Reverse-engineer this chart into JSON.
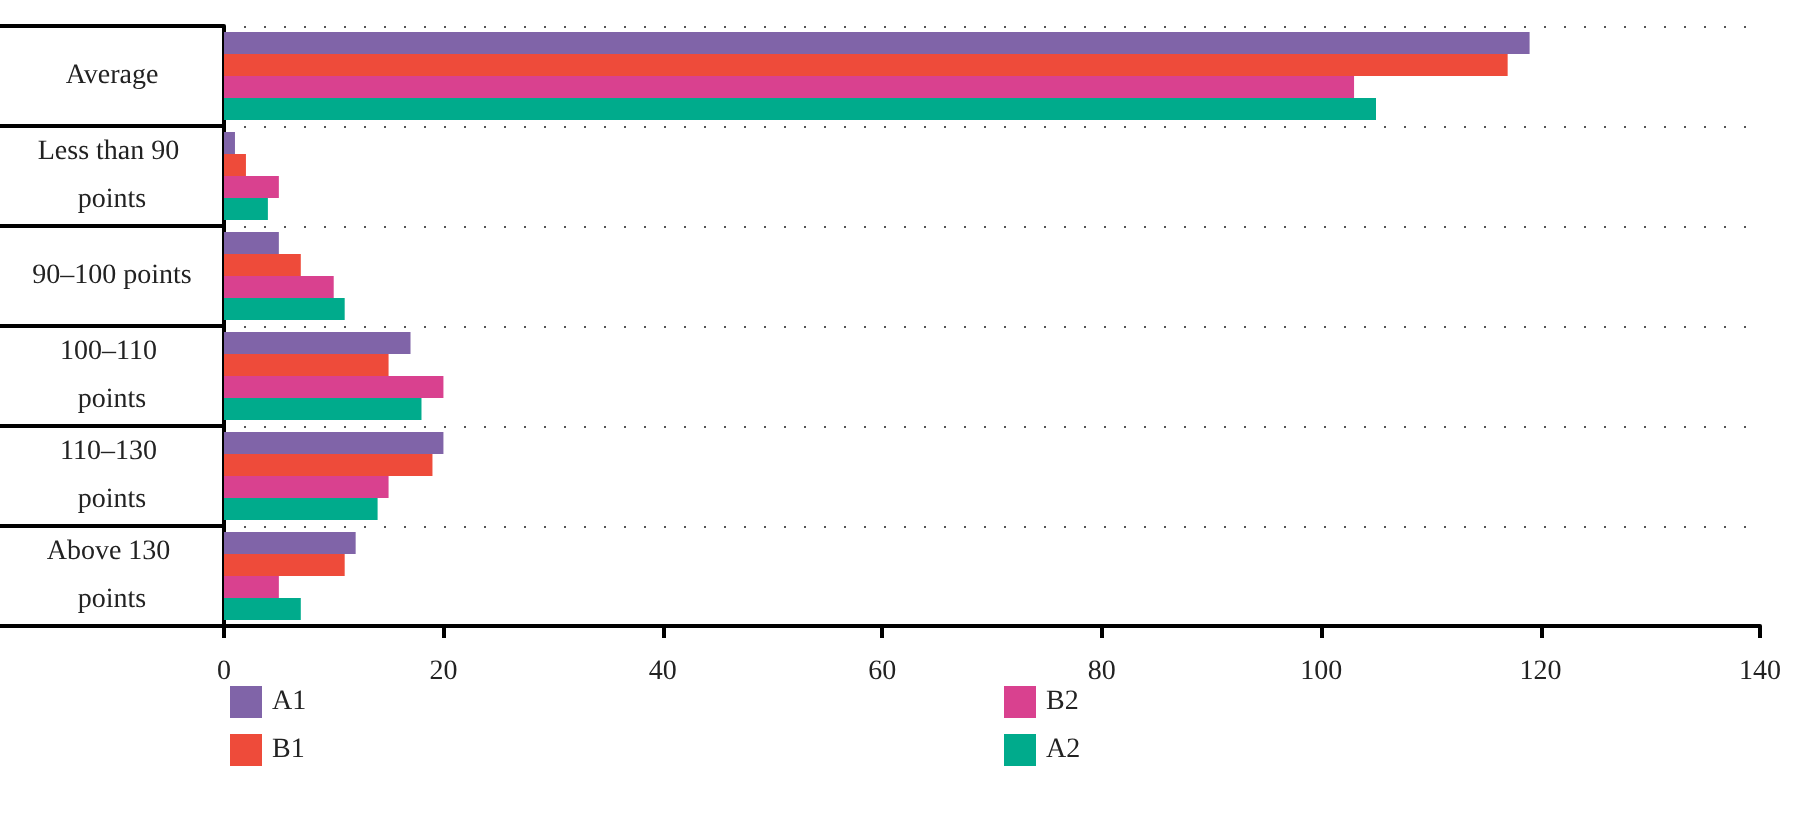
{
  "chart_data": {
    "type": "bar",
    "orientation": "horizontal",
    "categories": [
      "Average",
      "Less than 90 points",
      "90–100 points",
      "100–110 points",
      "110–130 points",
      "Above 130 points"
    ],
    "series": [
      {
        "name": "A1",
        "color": "#8064a8",
        "values": [
          119,
          1,
          5,
          17,
          20,
          12
        ]
      },
      {
        "name": "B1",
        "color": "#ee4b3a",
        "values": [
          117,
          2,
          7,
          15,
          19,
          11
        ]
      },
      {
        "name": "B2",
        "color": "#d9418f",
        "values": [
          103,
          5,
          10,
          20,
          15,
          5
        ]
      },
      {
        "name": "A2",
        "color": "#00ab8c",
        "values": [
          105,
          4,
          11,
          18,
          14,
          7
        ]
      }
    ],
    "xlim": [
      0,
      140
    ],
    "xticks": [
      0,
      20,
      40,
      60,
      80,
      100,
      120,
      140
    ],
    "grid": "y",
    "legend": "bottom"
  }
}
